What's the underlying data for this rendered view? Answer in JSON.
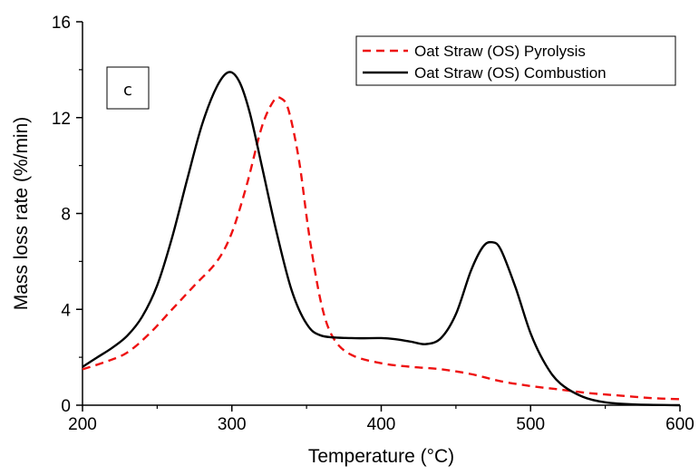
{
  "chart_data": {
    "type": "line",
    "xlabel": "Temperature (°C)",
    "ylabel": "Mass loss rate (%/min)",
    "xlim": [
      200,
      600
    ],
    "ylim": [
      0,
      16
    ],
    "xticks": [
      "200",
      "300",
      "400",
      "500",
      "600"
    ],
    "yticks": [
      "0",
      "4",
      "8",
      "12",
      "16"
    ],
    "panel_label": "c",
    "grid": false,
    "legend_position": "top-right",
    "series": [
      {
        "name": "Oat Straw (OS) Pyrolysis",
        "color": "#ee1111",
        "dash": "dashed",
        "x": [
          200,
          215,
          230,
          245,
          260,
          275,
          290,
          300,
          310,
          320,
          328,
          333,
          338,
          345,
          352,
          360,
          368,
          380,
          400,
          420,
          440,
          460,
          480,
          500,
          520,
          540,
          560,
          580,
          600
        ],
        "y": [
          1.5,
          1.8,
          2.2,
          3.0,
          4.0,
          5.0,
          6.0,
          7.2,
          9.2,
          11.6,
          12.7,
          12.8,
          12.3,
          10.2,
          7.0,
          4.2,
          2.8,
          2.1,
          1.75,
          1.6,
          1.5,
          1.3,
          1.0,
          0.8,
          0.65,
          0.5,
          0.4,
          0.3,
          0.25
        ]
      },
      {
        "name": "Oat Straw (OS) Combustion",
        "color": "#000000",
        "dash": "solid",
        "x": [
          200,
          210,
          220,
          230,
          240,
          250,
          260,
          270,
          280,
          290,
          298,
          305,
          312,
          320,
          330,
          340,
          350,
          360,
          380,
          400,
          410,
          420,
          430,
          440,
          450,
          460,
          468,
          474,
          480,
          490,
          500,
          510,
          520,
          535,
          550,
          570,
          600
        ],
        "y": [
          1.6,
          2.0,
          2.4,
          2.9,
          3.7,
          5.0,
          7.0,
          9.4,
          11.7,
          13.3,
          13.9,
          13.5,
          12.2,
          10.0,
          7.2,
          4.8,
          3.4,
          2.9,
          2.8,
          2.8,
          2.75,
          2.65,
          2.55,
          2.8,
          3.8,
          5.6,
          6.6,
          6.8,
          6.5,
          4.9,
          3.0,
          1.7,
          0.9,
          0.35,
          0.12,
          0.03,
          0.0
        ]
      }
    ]
  }
}
